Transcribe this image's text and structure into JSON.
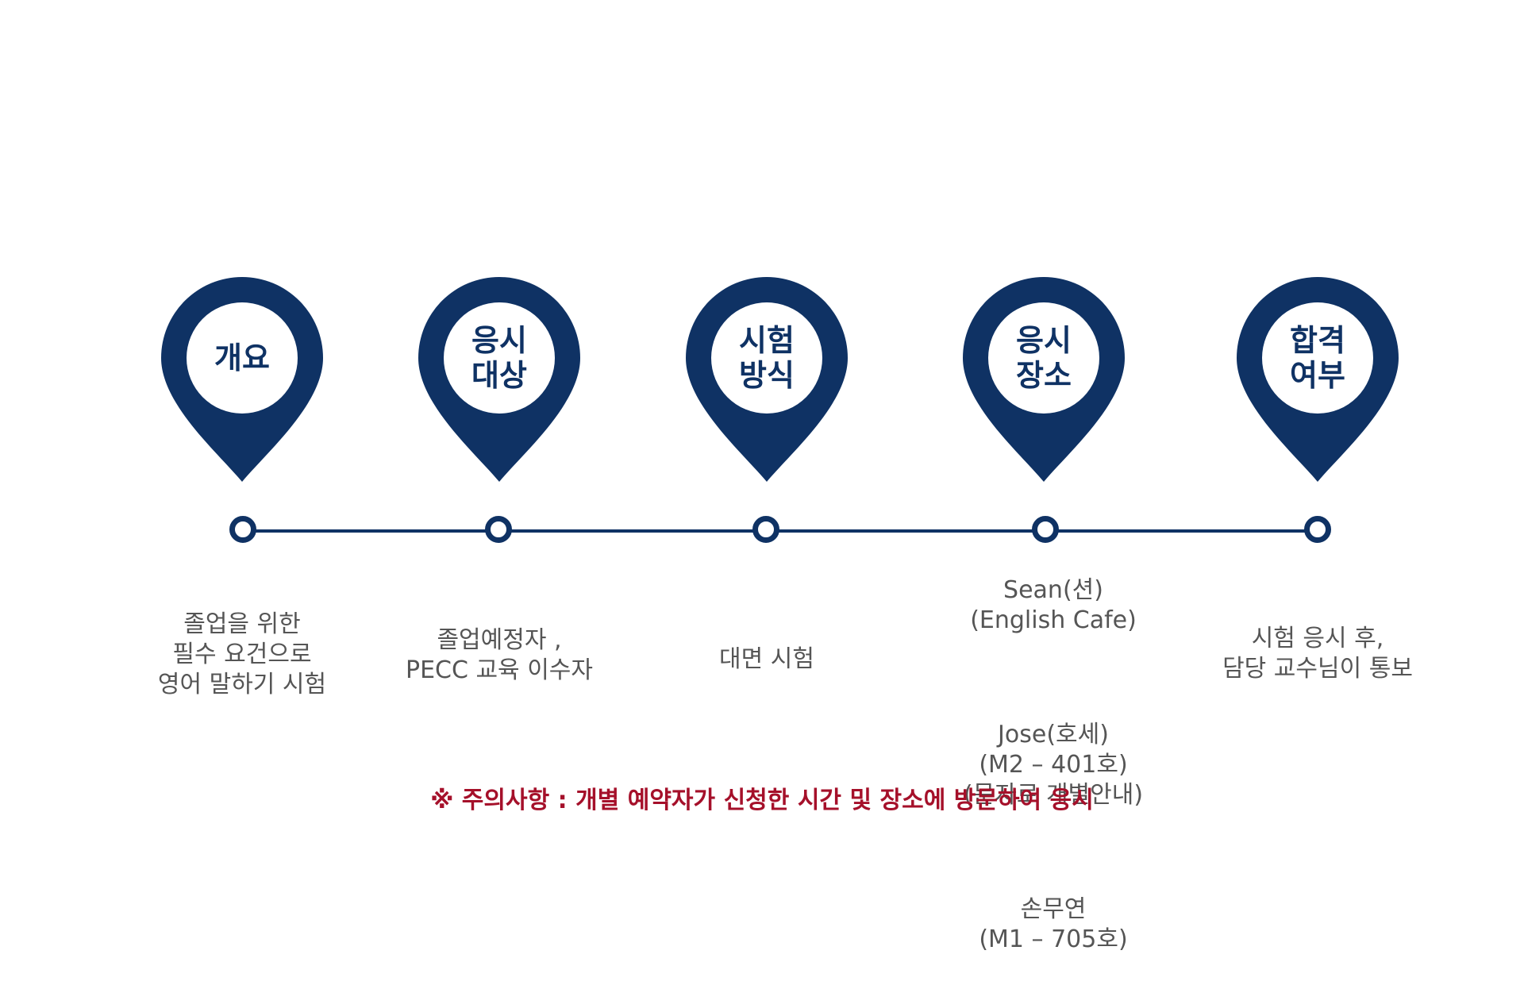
{
  "steps": [
    {
      "title": "개요",
      "description": "졸업을 위한\n필수 요건으로\n영어 말하기 시험"
    },
    {
      "title": "응시\n대상",
      "description": "졸업예정자 ,\nPECC 교육 이수자"
    },
    {
      "title": "시험\n방식",
      "description": "대면 시험"
    },
    {
      "title": "응시\n장소",
      "locations": [
        "Sean(션)\n(English Cafe)",
        "Jose(호세)\n(M2 – 401호)\n(문자로 개별안내)",
        "손무연\n(M1 – 705호)"
      ]
    },
    {
      "title": "합격\n여부",
      "description": "시험 응시 후,\n담당 교수님이 통보"
    }
  ],
  "notice": "※ 주의사항 :  개별 예약자가 신청한 시간 및 장소에 방문하여 응시",
  "colors": {
    "primary": "#0f3264",
    "notice": "#a5102a",
    "text": "#555555"
  },
  "icons": {
    "pin": "location-pin-icon"
  }
}
